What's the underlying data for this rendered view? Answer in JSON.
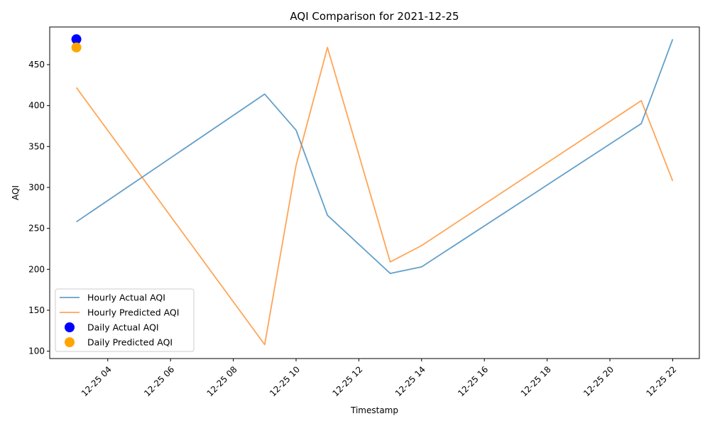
{
  "chart_data": {
    "type": "line",
    "title": "AQI Comparison for 2021-12-25",
    "xlabel": "Timestamp",
    "ylabel": "AQI",
    "x_tick_labels": [
      "12-25 04",
      "12-25 06",
      "12-25 08",
      "12-25 10",
      "12-25 12",
      "12-25 14",
      "12-25 16",
      "12-25 18",
      "12-25 20",
      "12-25 22"
    ],
    "x_tick_hours": [
      4,
      6,
      8,
      10,
      12,
      14,
      16,
      18,
      20,
      22
    ],
    "xlim_hours": [
      2.15,
      22.85
    ],
    "ylim": [
      91,
      496
    ],
    "y_ticks": [
      100,
      150,
      200,
      250,
      300,
      350,
      400,
      450
    ],
    "grid": false,
    "legend_placement": "lower-left",
    "series": [
      {
        "name": "Hourly Actual AQI",
        "kind": "line",
        "color": "#1f77b4",
        "x_hours": [
          3,
          9,
          10,
          11,
          13,
          14,
          21,
          22
        ],
        "values": [
          258,
          414,
          370,
          266,
          195,
          203,
          378,
          481
        ]
      },
      {
        "name": "Hourly Predicted AQI",
        "kind": "line",
        "color": "#ff7f0e",
        "x_hours": [
          3,
          9,
          10,
          11,
          13,
          14,
          21,
          22
        ],
        "values": [
          422,
          108,
          327,
          471,
          209,
          229,
          406,
          308
        ]
      },
      {
        "name": "Daily Actual AQI",
        "kind": "scatter",
        "color": "#0000ff",
        "x_hours": [
          3
        ],
        "values": [
          481
        ]
      },
      {
        "name": "Daily Predicted AQI",
        "kind": "scatter",
        "color": "#ffa500",
        "x_hours": [
          3
        ],
        "values": [
          471
        ]
      }
    ]
  }
}
